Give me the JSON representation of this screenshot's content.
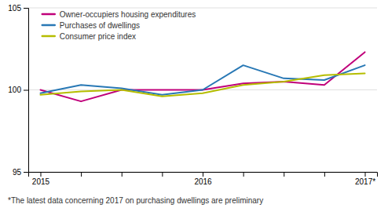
{
  "chart_data": {
    "type": "line",
    "categories": [
      "2015",
      null,
      null,
      null,
      "2016",
      null,
      null,
      null,
      "2017*"
    ],
    "series": [
      {
        "name": "Owner-occupiers housing expenditures",
        "color": "#c0007a",
        "values": [
          100.0,
          99.3,
          100.0,
          100.0,
          100.0,
          100.4,
          100.5,
          100.3,
          102.3
        ]
      },
      {
        "name": "Purchases of dwellings",
        "color": "#2878b5",
        "values": [
          99.8,
          100.3,
          100.1,
          99.7,
          100.0,
          101.5,
          100.7,
          100.6,
          101.5
        ]
      },
      {
        "name": "Consumer price index",
        "color": "#b5bd00",
        "values": [
          99.7,
          99.9,
          100.0,
          99.6,
          99.8,
          100.3,
          100.5,
          100.9,
          101.0
        ]
      }
    ],
    "ylim": [
      95,
      105
    ],
    "yticks": [
      95,
      100,
      105
    ],
    "grid": true,
    "legend": "upper left",
    "annotations": [
      "*The latest data concerning 2017 on purchasing dwellings are preliminary"
    ]
  }
}
